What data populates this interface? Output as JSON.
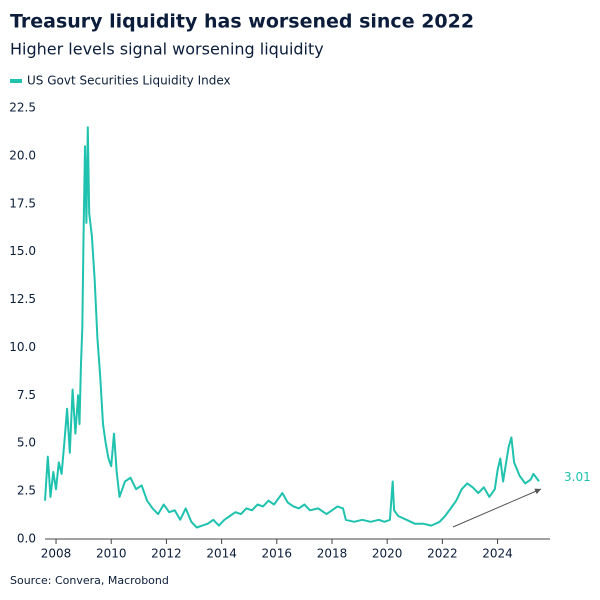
{
  "chart_data": {
    "type": "line",
    "title": "Treasury liquidity has worsened since 2022",
    "subtitle": "Higher levels signal worsening liquidity",
    "source": "Source: Convera, Macrobond",
    "xlim": [
      2007.6,
      2025.9
    ],
    "xticks": [
      2008,
      2010,
      2012,
      2014,
      2016,
      2018,
      2020,
      2022,
      2024
    ],
    "ylim": [
      0,
      22.5
    ],
    "yticks": [
      {
        "value": 0,
        "label": "0.0"
      },
      2.5,
      {
        "value": 5,
        "label": "5.0"
      },
      7.5,
      {
        "value": 10,
        "label": "10.0"
      },
      12.5,
      {
        "value": 15,
        "label": "15.0"
      },
      17.5,
      {
        "value": 20,
        "label": "20.0"
      },
      22.5
    ],
    "grid": false,
    "x": [
      2007.6,
      2007.7,
      2007.8,
      2007.9,
      2008.0,
      2008.1,
      2008.2,
      2008.3,
      2008.4,
      2008.5,
      2008.6,
      2008.7,
      2008.8,
      2008.85,
      2008.9,
      2008.95,
      2009.0,
      2009.05,
      2009.1,
      2009.15,
      2009.2,
      2009.3,
      2009.4,
      2009.5,
      2009.6,
      2009.7,
      2009.8,
      2009.9,
      2010.0,
      2010.1,
      2010.2,
      2010.3,
      2010.5,
      2010.7,
      2010.9,
      2011.1,
      2011.3,
      2011.5,
      2011.7,
      2011.9,
      2012.1,
      2012.3,
      2012.5,
      2012.7,
      2012.9,
      2013.1,
      2013.3,
      2013.5,
      2013.7,
      2013.9,
      2014.1,
      2014.3,
      2014.5,
      2014.7,
      2014.9,
      2015.1,
      2015.3,
      2015.5,
      2015.7,
      2015.9,
      2016.1,
      2016.2,
      2016.4,
      2016.6,
      2016.8,
      2017.0,
      2017.2,
      2017.5,
      2017.8,
      2018.0,
      2018.2,
      2018.4,
      2018.5,
      2018.8,
      2019.1,
      2019.4,
      2019.7,
      2019.9,
      2020.1,
      2020.2,
      2020.25,
      2020.4,
      2020.7,
      2021.0,
      2021.3,
      2021.6,
      2021.9,
      2022.1,
      2022.3,
      2022.5,
      2022.7,
      2022.9,
      2023.1,
      2023.3,
      2023.5,
      2023.7,
      2023.9,
      2024.0,
      2024.1,
      2024.2,
      2024.4,
      2024.5,
      2024.6,
      2024.8,
      2025.0,
      2025.2,
      2025.3,
      2025.5
    ],
    "series": [
      {
        "name": "US Govt Securities Liquidity Index",
        "color": "#1fc2ae",
        "values": [
          2.0,
          4.3,
          2.2,
          3.5,
          2.6,
          4.0,
          3.4,
          5.0,
          6.8,
          4.5,
          7.8,
          5.5,
          7.5,
          6.0,
          9.0,
          11.0,
          16.0,
          20.5,
          16.5,
          21.5,
          17.0,
          15.8,
          13.5,
          10.5,
          8.5,
          6.0,
          5.0,
          4.2,
          3.8,
          5.5,
          3.5,
          2.2,
          3.0,
          3.2,
          2.6,
          2.8,
          2.0,
          1.6,
          1.3,
          1.8,
          1.4,
          1.5,
          1.0,
          1.6,
          0.9,
          0.6,
          0.7,
          0.8,
          1.0,
          0.7,
          1.0,
          1.2,
          1.4,
          1.3,
          1.6,
          1.5,
          1.8,
          1.7,
          2.0,
          1.8,
          2.2,
          2.4,
          1.9,
          1.7,
          1.6,
          1.8,
          1.5,
          1.6,
          1.3,
          1.5,
          1.7,
          1.6,
          1.0,
          0.9,
          1.0,
          0.9,
          1.0,
          0.9,
          1.0,
          3.0,
          1.5,
          1.2,
          1.0,
          0.8,
          0.8,
          0.7,
          0.9,
          1.2,
          1.6,
          2.0,
          2.6,
          2.9,
          2.7,
          2.4,
          2.7,
          2.2,
          2.6,
          3.6,
          4.2,
          3.0,
          4.8,
          5.3,
          4.0,
          3.3,
          2.9,
          3.1,
          3.4,
          3.01
        ]
      }
    ]
  }
}
